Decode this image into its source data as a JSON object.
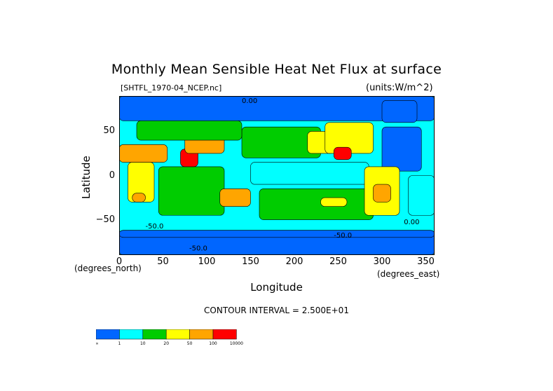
{
  "chart": {
    "title": "Monthly Mean Sensible Heat Net Flux at surface",
    "file_label": "[SHTFL_1970-04_NCEP.nc]",
    "units_label": "(units:W/m^2)",
    "xlabel": "Longitude",
    "ylabel": "Latitude",
    "x_units": "(degrees_east)",
    "y_units": "(degrees_north)",
    "contour_interval": "CONTOUR INTERVAL = 2.500E+01"
  },
  "chart_data": {
    "type": "heatmap",
    "title": "Monthly Mean Sensible Heat Net Flux at surface",
    "xlabel": "Longitude",
    "ylabel": "Latitude",
    "xlim": [
      0,
      360
    ],
    "ylim": [
      -90,
      90
    ],
    "x_ticks": [
      "0",
      "50",
      "100",
      "150",
      "200",
      "250",
      "300",
      "350"
    ],
    "y_ticks": [
      "50",
      "0",
      "−50"
    ],
    "contour_labels": [
      "0.00",
      "0.00",
      "-50.0",
      "-50.0",
      "-50.0"
    ],
    "colorbar": {
      "labels": [
        "-∞",
        "1",
        "10",
        "20",
        "50",
        "100",
        "10000"
      ],
      "colors": [
        "#0066ff",
        "#00ffff",
        "#00cc00",
        "#ffff00",
        "#ffa500",
        "#ff0000"
      ]
    },
    "regions": [
      {
        "name": "north-polar-band",
        "level": 0,
        "lon": [
          0,
          360
        ],
        "lat": [
          62,
          90
        ]
      },
      {
        "name": "southern-ocean-band",
        "level": 0,
        "lon": [
          0,
          360
        ],
        "lat": [
          -90,
          -62
        ]
      },
      {
        "name": "north-atlantic",
        "level": 0,
        "lon": [
          300,
          345
        ],
        "lat": [
          5,
          55
        ]
      },
      {
        "name": "north-pacific-west",
        "level": 2,
        "lon": [
          140,
          230
        ],
        "lat": [
          20,
          55
        ]
      },
      {
        "name": "north-pacific-east",
        "level": 3,
        "lon": [
          215,
          245
        ],
        "lat": [
          25,
          50
        ]
      },
      {
        "name": "tropical-pacific",
        "level": 1,
        "lon": [
          150,
          285
        ],
        "lat": [
          -10,
          15
        ]
      },
      {
        "name": "south-pacific",
        "level": 2,
        "lon": [
          160,
          290
        ],
        "lat": [
          -50,
          -15
        ]
      },
      {
        "name": "south-pacific-yellow",
        "level": 3,
        "lon": [
          230,
          260
        ],
        "lat": [
          -35,
          -25
        ]
      },
      {
        "name": "indian-ocean",
        "level": 2,
        "lon": [
          45,
          120
        ],
        "lat": [
          -45,
          10
        ]
      },
      {
        "name": "south-atlantic",
        "level": 1,
        "lon": [
          330,
          360
        ],
        "lat": [
          -45,
          0
        ]
      },
      {
        "name": "africa",
        "level": 3,
        "lon": [
          10,
          40
        ],
        "lat": [
          -30,
          15
        ]
      },
      {
        "name": "south-africa-orange",
        "level": 4,
        "lon": [
          15,
          30
        ],
        "lat": [
          -30,
          -20
        ]
      },
      {
        "name": "sahara-arabia",
        "level": 4,
        "lon": [
          0,
          55
        ],
        "lat": [
          15,
          35
        ]
      },
      {
        "name": "india",
        "level": 5,
        "lon": [
          70,
          90
        ],
        "lat": [
          10,
          30
        ]
      },
      {
        "name": "tibet-china",
        "level": 4,
        "lon": [
          75,
          120
        ],
        "lat": [
          25,
          45
        ]
      },
      {
        "name": "europe-asia-mid",
        "level": 2,
        "lon": [
          20,
          140
        ],
        "lat": [
          40,
          62
        ]
      },
      {
        "name": "australia",
        "level": 4,
        "lon": [
          115,
          150
        ],
        "lat": [
          -35,
          -15
        ]
      },
      {
        "name": "north-america",
        "level": 3,
        "lon": [
          235,
          290
        ],
        "lat": [
          25,
          60
        ]
      },
      {
        "name": "mexico",
        "level": 5,
        "lon": [
          245,
          265
        ],
        "lat": [
          18,
          32
        ]
      },
      {
        "name": "south-america",
        "level": 3,
        "lon": [
          280,
          320
        ],
        "lat": [
          -45,
          10
        ]
      },
      {
        "name": "south-america-orange",
        "level": 4,
        "lon": [
          290,
          310
        ],
        "lat": [
          -30,
          -10
        ]
      },
      {
        "name": "greenland",
        "level": 0,
        "lon": [
          300,
          340
        ],
        "lat": [
          60,
          85
        ]
      },
      {
        "name": "antarctica-edge",
        "level": 0,
        "lon": [
          0,
          360
        ],
        "lat": [
          -70,
          -62
        ]
      }
    ]
  }
}
